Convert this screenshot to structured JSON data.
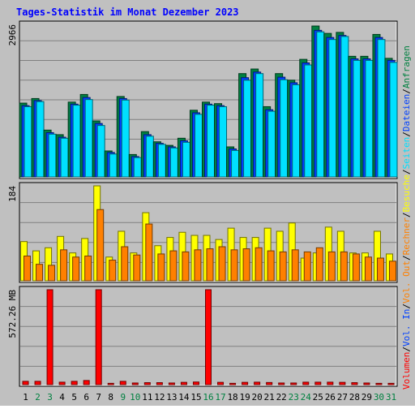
{
  "title": "Tages-Statistik im Monat Dezember 2023",
  "days": [
    "1",
    "2",
    "3",
    "4",
    "5",
    "6",
    "7",
    "8",
    "9",
    "10",
    "11",
    "12",
    "13",
    "14",
    "15",
    "16",
    "17",
    "18",
    "19",
    "20",
    "21",
    "22",
    "23",
    "24",
    "25",
    "26",
    "27",
    "28",
    "29",
    "30",
    "31"
  ],
  "weekend_days": [
    "2",
    "3",
    "9",
    "10",
    "16",
    "17",
    "23",
    "24",
    "30",
    "31"
  ],
  "colors": {
    "background": "#c0c0c0",
    "title": "#0000ff",
    "anfragen": "#008040",
    "dateien": "#0040ff",
    "seiten": "#00e0ff",
    "besuche": "#ffff00",
    "rechner": "#ff8000",
    "vol_out": "#ff8000",
    "vol_in": "#0040ff",
    "volumen": "#ff0000",
    "weekday_label": "#000000",
    "weekend_label": "#008040"
  },
  "chart_data": [
    {
      "type": "bar",
      "name": "hits",
      "ymax_label": "2966",
      "ylim": [
        0,
        2966
      ],
      "series": [
        {
          "name": "Anfragen",
          "values": [
            1450,
            1540,
            920,
            830,
            1470,
            1620,
            1100,
            510,
            1580,
            440,
            890,
            690,
            620,
            760,
            1310,
            1470,
            1440,
            590,
            2030,
            2120,
            1380,
            2030,
            1900,
            2310,
            2965,
            2820,
            2840,
            2370,
            2370,
            2800,
            2330
          ]
        },
        {
          "name": "Dateien",
          "values": [
            1400,
            1500,
            870,
            780,
            1430,
            1560,
            1050,
            480,
            1540,
            400,
            830,
            660,
            590,
            710,
            1260,
            1430,
            1400,
            550,
            1950,
            2060,
            1320,
            1960,
            1850,
            2240,
            2880,
            2740,
            2780,
            2320,
            2320,
            2740,
            2290
          ]
        },
        {
          "name": "Seiten",
          "values": [
            1380,
            1480,
            840,
            760,
            1410,
            1520,
            1010,
            450,
            1510,
            380,
            800,
            640,
            570,
            680,
            1230,
            1410,
            1380,
            520,
            1900,
            2030,
            1290,
            1910,
            1810,
            2200,
            2850,
            2700,
            2760,
            2290,
            2290,
            2700,
            2250
          ]
        }
      ]
    },
    {
      "type": "bar",
      "name": "visits",
      "ymax_label": "184",
      "ylim": [
        0,
        184
      ],
      "series": [
        {
          "name": "Besuche",
          "values": [
            76,
            58,
            64,
            86,
            54,
            82,
            184,
            46,
            96,
            54,
            132,
            68,
            84,
            94,
            88,
            88,
            80,
            102,
            84,
            84,
            102,
            96,
            112,
            44,
            54,
            104,
            96,
            54,
            54,
            96,
            52
          ]
        },
        {
          "name": "Rechner",
          "values": [
            48,
            32,
            30,
            60,
            46,
            48,
            138,
            40,
            66,
            50,
            110,
            52,
            58,
            56,
            60,
            62,
            66,
            60,
            62,
            64,
            58,
            56,
            60,
            56,
            64,
            56,
            56,
            52,
            46,
            44,
            38
          ]
        }
      ]
    },
    {
      "type": "bar",
      "name": "volume",
      "ymax_label": "572.26 MB",
      "ylim": [
        0,
        572.26
      ],
      "series": [
        {
          "name": "Volumen",
          "values": [
            20,
            20,
            572.26,
            15,
            20,
            25,
            572.26,
            8,
            20,
            10,
            12,
            12,
            10,
            14,
            16,
            572.26,
            14,
            8,
            14,
            15,
            13,
            10,
            10,
            15,
            15,
            15,
            14,
            12,
            10,
            8,
            8
          ]
        }
      ]
    }
  ],
  "legend_right": [
    {
      "text": "Anfragen",
      "color_key": "anfragen"
    },
    {
      "text": "Dateien",
      "color_key": "dateien"
    },
    {
      "text": "Seiten",
      "color_key": "seiten"
    },
    {
      "text": "Besuche",
      "color_key": "besuche"
    },
    {
      "text": "Rechner",
      "color_key": "rechner"
    },
    {
      "text": "Vol. Out",
      "color_key": "vol_out"
    },
    {
      "text": "Vol. In",
      "color_key": "vol_in"
    },
    {
      "text": "Volumen",
      "color_key": "volumen"
    }
  ],
  "separator": "/"
}
